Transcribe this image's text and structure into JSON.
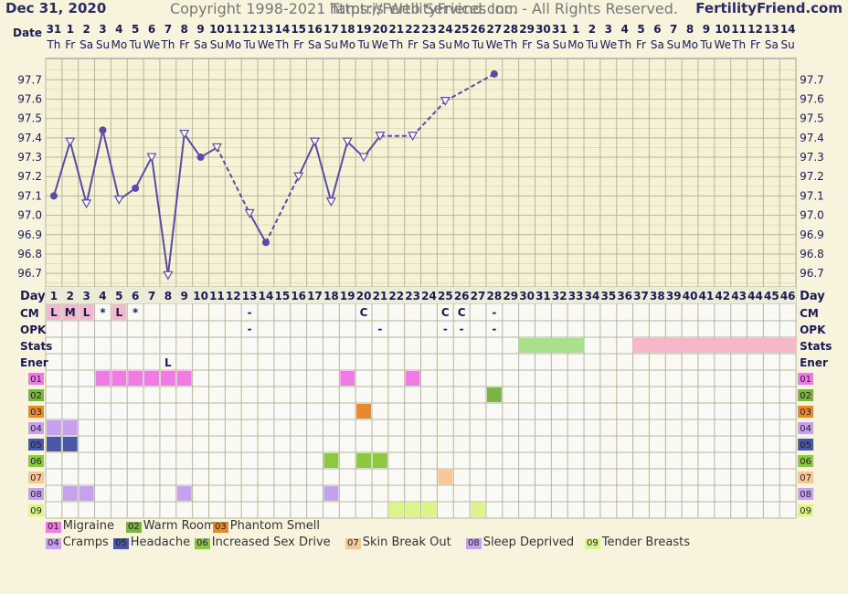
{
  "header": {
    "date": "Dec 31, 2020",
    "site": "FertilityFriend.com"
  },
  "row_labels": {
    "date": "Date",
    "day": "Day",
    "cm": "CM",
    "opk": "OPK",
    "stats": "Stats",
    "ener": "Ener"
  },
  "dates": [
    "31",
    "1",
    "2",
    "3",
    "4",
    "5",
    "6",
    "7",
    "8",
    "9",
    "10",
    "11",
    "12",
    "13",
    "14",
    "15",
    "16",
    "17",
    "18",
    "19",
    "20",
    "21",
    "22",
    "23",
    "24",
    "25",
    "26",
    "27",
    "28",
    "29",
    "30",
    "31",
    "1",
    "2",
    "3",
    "4",
    "5",
    "6",
    "7",
    "8",
    "9",
    "10",
    "11",
    "12",
    "13",
    "14"
  ],
  "weekdays": [
    "Th",
    "Fr",
    "Sa",
    "Su",
    "Mo",
    "Tu",
    "We",
    "Th",
    "Fr",
    "Sa",
    "Su",
    "Mo",
    "Tu",
    "We",
    "Th",
    "Fr",
    "Sa",
    "Su",
    "Mo",
    "Tu",
    "We",
    "Th",
    "Fr",
    "Sa",
    "Su",
    "Mo",
    "Tu",
    "We",
    "Th",
    "Fr",
    "Sa",
    "Su",
    "Mo",
    "Tu",
    "We",
    "Th",
    "Fr",
    "Sa",
    "Su",
    "Mo",
    "Tu",
    "We",
    "Th",
    "Fr",
    "Sa",
    "Su"
  ],
  "cm": {
    "1": "L",
    "2": "M",
    "3": "L",
    "4": "*",
    "5": "L",
    "6": "*",
    "13": "-",
    "20": "C",
    "25": "C",
    "26": "C",
    "28": "-"
  },
  "cm_highlight_days": [
    1,
    2,
    3,
    5
  ],
  "opk": {
    "13": "-",
    "21": "-",
    "25": "-",
    "26": "-",
    "28": "-"
  },
  "ener": {
    "8": "L"
  },
  "stats_bars": [
    {
      "from": 30,
      "to": 33,
      "color": "#a8e08c"
    },
    {
      "from": 37,
      "to": 46,
      "color": "#f4b8c8"
    }
  ],
  "symptoms": [
    {
      "code": "01",
      "name": "Migraine",
      "color": "#f07ae6",
      "days": [
        4,
        5,
        6,
        7,
        8,
        9,
        19,
        23
      ]
    },
    {
      "code": "02",
      "name": "Warm Room",
      "color": "#7cb342",
      "days": [
        28
      ]
    },
    {
      "code": "03",
      "name": "Phantom Smell",
      "color": "#e88a2a",
      "days": [
        20
      ]
    },
    {
      "code": "04",
      "name": "Cramps",
      "color": "#c9a0f0",
      "days": [
        1,
        2
      ]
    },
    {
      "code": "05",
      "name": "Headache",
      "color": "#4a56a6",
      "days": [
        1,
        2
      ]
    },
    {
      "code": "06",
      "name": "Increased Sex Drive",
      "color": "#8cc840",
      "days": [
        18,
        20,
        21
      ]
    },
    {
      "code": "07",
      "name": "Skin Break Out",
      "color": "#f7c79a",
      "days": [
        25
      ]
    },
    {
      "code": "08",
      "name": "Sleep Deprived",
      "color": "#c4a2ee",
      "days": [
        2,
        3,
        9,
        18
      ]
    },
    {
      "code": "09",
      "name": "Tender Breasts",
      "color": "#dcf58a",
      "days": [
        22,
        23,
        24,
        27
      ]
    }
  ],
  "chart_data": {
    "type": "line",
    "xlabel": "Day",
    "ylabel": "",
    "x": [
      1,
      2,
      3,
      4,
      5,
      6,
      7,
      8,
      9,
      10,
      11,
      12,
      13,
      14,
      15,
      16,
      17,
      18,
      19,
      20,
      21,
      22,
      23,
      24,
      25,
      26,
      27,
      28
    ],
    "y_ticks": [
      "97.7",
      "97.6",
      "97.5",
      "97.4",
      "97.3",
      "97.2",
      "97.1",
      "97.0",
      "96.9",
      "96.8",
      "96.7"
    ],
    "ylim": [
      96.63,
      97.81
    ],
    "series": [
      {
        "values": [
          97.1,
          97.38,
          97.06,
          97.44,
          97.08,
          97.14,
          97.3,
          96.69,
          97.42,
          97.3,
          97.35,
          null,
          97.01,
          96.86,
          null,
          97.2,
          97.38,
          97.07,
          97.38,
          97.3,
          97.41,
          null,
          97.41,
          null,
          97.59,
          null,
          null,
          97.73
        ],
        "marker": [
          "dot",
          "tri",
          "tri",
          "dot",
          "tri",
          "dot",
          "tri",
          "tri",
          "tri",
          "dot",
          "tri",
          null,
          "tri",
          "dot",
          null,
          "tri",
          "tri",
          "tri",
          "tri",
          "tri",
          "tri",
          null,
          "tri",
          null,
          "tri",
          null,
          null,
          "dot"
        ]
      }
    ],
    "grid": true,
    "color": "#5a4aa8"
  },
  "footer": {
    "url": "https://FertilityFriend.com",
    "copyright": "Copyright 1998-2021 Tamtris Web Services Inc. - All Rights Reserved."
  }
}
